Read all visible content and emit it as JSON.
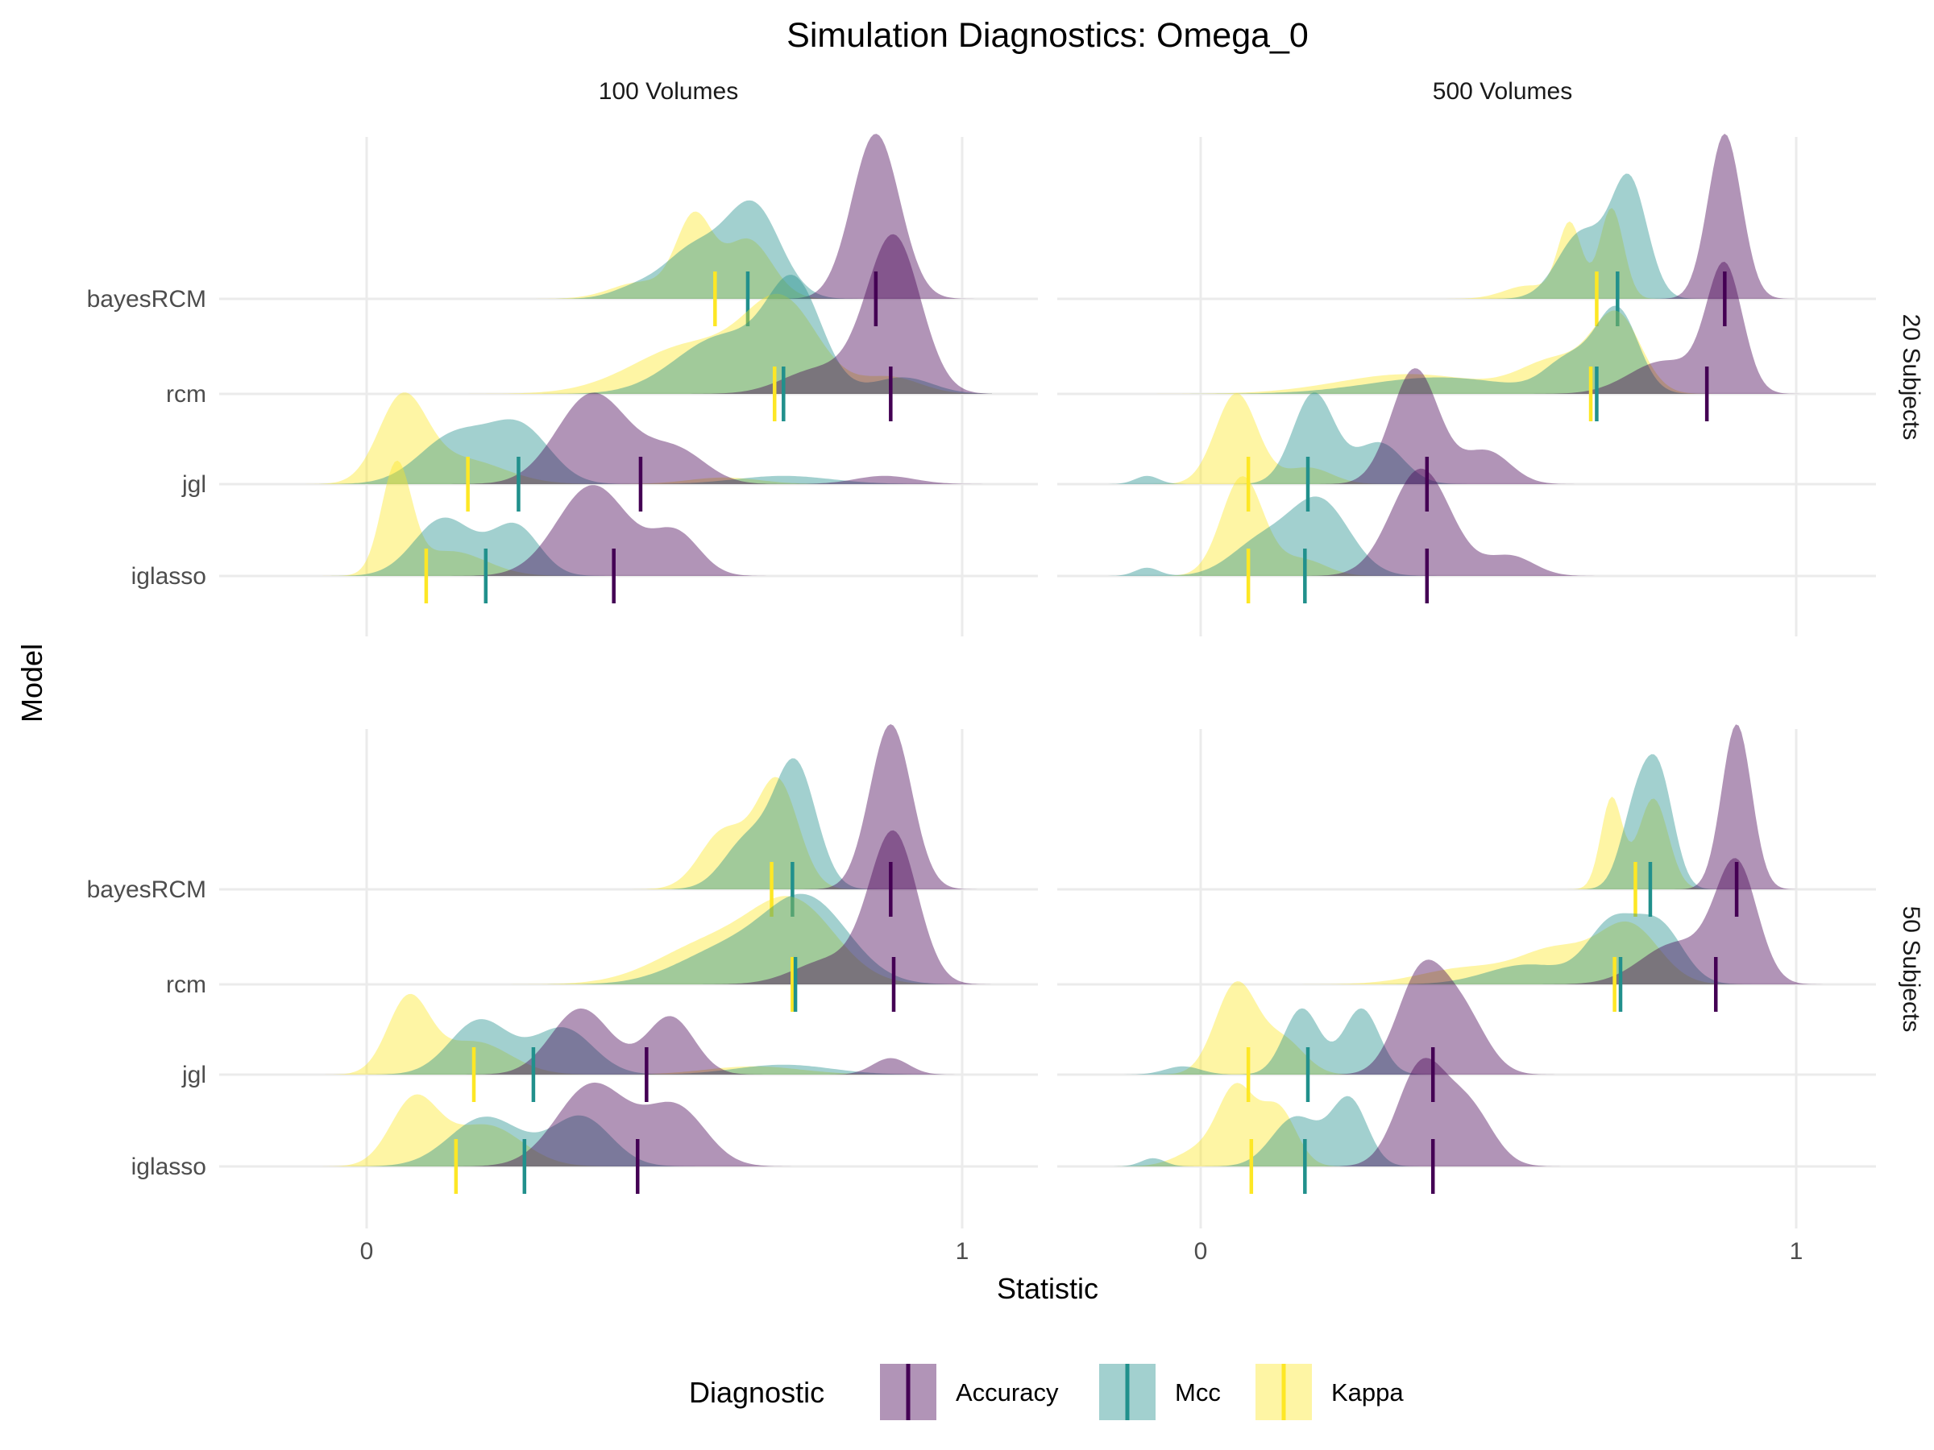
{
  "title": "Simulation Diagnostics: Omega_0",
  "xlabel": "Statistic",
  "ylabel": "Model",
  "legend": {
    "title": "Diagnostic",
    "entries": [
      "Accuracy",
      "Mcc",
      "Kappa"
    ],
    "colors": {
      "Accuracy": "#440154",
      "Mcc": "#21908C",
      "Kappa": "#FDE725"
    },
    "placement": "bottom"
  },
  "chart_data": {
    "type": "ridgeline",
    "column_facets": [
      "100 Volumes",
      "500 Volumes"
    ],
    "row_facets": [
      "20 Subjects",
      "50 Subjects"
    ],
    "models": [
      "bayesRCM",
      "rcm",
      "jgl",
      "iglasso"
    ],
    "xlim": [
      -0.23,
      1.1
    ],
    "x_ticks": [
      0,
      1
    ],
    "x_tick_labels": [
      "0",
      "1"
    ],
    "grid": true,
    "panels": {
      "20 Subjects|100 Volumes": {
        "bayesRCM": {
          "Accuracy": {
            "median": 0.855,
            "peaks": [
              [
                0.855,
                0.04,
                1.0
              ]
            ]
          },
          "Mcc": {
            "median": 0.64,
            "peaks": [
              [
                0.65,
                0.045,
                0.55
              ],
              [
                0.55,
                0.05,
                0.3
              ],
              [
                0.45,
                0.04,
                0.06
              ]
            ]
          },
          "Kappa": {
            "median": 0.585,
            "peaks": [
              [
                0.55,
                0.03,
                0.48
              ],
              [
                0.64,
                0.04,
                0.36
              ],
              [
                0.46,
                0.05,
                0.1
              ]
            ]
          }
        },
        "rcm": {
          "Accuracy": {
            "median": 0.88,
            "peaks": [
              [
                0.885,
                0.045,
                0.95
              ],
              [
                0.76,
                0.06,
                0.15
              ]
            ]
          },
          "Mcc": {
            "median": 0.7,
            "peaks": [
              [
                0.72,
                0.045,
                0.6
              ],
              [
                0.6,
                0.08,
                0.35
              ],
              [
                0.9,
                0.05,
                0.1
              ]
            ]
          },
          "Kappa": {
            "median": 0.685,
            "peaks": [
              [
                0.7,
                0.06,
                0.5
              ],
              [
                0.55,
                0.1,
                0.3
              ],
              [
                0.88,
                0.05,
                0.1
              ]
            ]
          }
        },
        "jgl": {
          "Accuracy": {
            "median": 0.46,
            "peaks": [
              [
                0.38,
                0.06,
                0.55
              ],
              [
                0.52,
                0.05,
                0.2
              ],
              [
                0.87,
                0.05,
                0.05
              ]
            ]
          },
          "Mcc": {
            "median": 0.255,
            "peaks": [
              [
                0.15,
                0.06,
                0.3
              ],
              [
                0.26,
                0.05,
                0.32
              ],
              [
                0.7,
                0.08,
                0.05
              ]
            ]
          },
          "Kappa": {
            "median": 0.17,
            "peaks": [
              [
                0.06,
                0.04,
                0.5
              ],
              [
                0.16,
                0.07,
                0.15
              ],
              [
                0.6,
                0.06,
                0.04
              ]
            ]
          }
        },
        "iglasso": {
          "Accuracy": {
            "median": 0.415,
            "peaks": [
              [
                0.38,
                0.06,
                0.55
              ],
              [
                0.52,
                0.04,
                0.25
              ]
            ]
          },
          "Mcc": {
            "median": 0.2,
            "peaks": [
              [
                0.13,
                0.05,
                0.35
              ],
              [
                0.25,
                0.04,
                0.3
              ]
            ]
          },
          "Kappa": {
            "median": 0.1,
            "peaks": [
              [
                0.05,
                0.025,
                0.65
              ],
              [
                0.14,
                0.06,
                0.15
              ]
            ]
          }
        }
      },
      "20 Subjects|500 Volumes": {
        "bayesRCM": {
          "Accuracy": {
            "median": 0.88,
            "peaks": [
              [
                0.88,
                0.028,
                1.0
              ]
            ]
          },
          "Mcc": {
            "median": 0.7,
            "peaks": [
              [
                0.72,
                0.03,
                0.7
              ],
              [
                0.64,
                0.04,
                0.4
              ]
            ]
          },
          "Kappa": {
            "median": 0.665,
            "peaks": [
              [
                0.69,
                0.02,
                0.55
              ],
              [
                0.62,
                0.02,
                0.45
              ],
              [
                0.55,
                0.04,
                0.08
              ]
            ]
          }
        },
        "rcm": {
          "Accuracy": {
            "median": 0.85,
            "peaks": [
              [
                0.88,
                0.03,
                0.75
              ],
              [
                0.78,
                0.06,
                0.2
              ]
            ]
          },
          "Mcc": {
            "median": 0.665,
            "peaks": [
              [
                0.7,
                0.035,
                0.5
              ],
              [
                0.62,
                0.04,
                0.2
              ],
              [
                0.4,
                0.12,
                0.1
              ]
            ]
          },
          "Kappa": {
            "median": 0.655,
            "peaks": [
              [
                0.7,
                0.04,
                0.45
              ],
              [
                0.6,
                0.06,
                0.2
              ],
              [
                0.35,
                0.12,
                0.12
              ]
            ]
          }
        },
        "jgl": {
          "Accuracy": {
            "median": 0.38,
            "peaks": [
              [
                0.36,
                0.04,
                0.7
              ],
              [
                0.48,
                0.04,
                0.2
              ]
            ]
          },
          "Mcc": {
            "median": 0.18,
            "peaks": [
              [
                0.19,
                0.035,
                0.55
              ],
              [
                0.3,
                0.04,
                0.25
              ],
              [
                -0.09,
                0.02,
                0.05
              ]
            ]
          },
          "Kappa": {
            "median": 0.08,
            "peaks": [
              [
                0.06,
                0.035,
                0.55
              ],
              [
                0.18,
                0.04,
                0.1
              ]
            ]
          }
        },
        "iglasso": {
          "Accuracy": {
            "median": 0.38,
            "peaks": [
              [
                0.37,
                0.05,
                0.65
              ],
              [
                0.52,
                0.04,
                0.12
              ]
            ]
          },
          "Mcc": {
            "median": 0.175,
            "peaks": [
              [
                0.2,
                0.05,
                0.45
              ],
              [
                0.1,
                0.05,
                0.2
              ],
              [
                -0.09,
                0.02,
                0.05
              ]
            ]
          },
          "Kappa": {
            "median": 0.08,
            "peaks": [
              [
                0.07,
                0.035,
                0.6
              ],
              [
                0.17,
                0.04,
                0.1
              ]
            ]
          }
        }
      },
      "50 Subjects|100 Volumes": {
        "bayesRCM": {
          "Accuracy": {
            "median": 0.88,
            "peaks": [
              [
                0.88,
                0.035,
                1.0
              ]
            ]
          },
          "Mcc": {
            "median": 0.715,
            "peaks": [
              [
                0.72,
                0.035,
                0.75
              ],
              [
                0.64,
                0.04,
                0.3
              ]
            ]
          },
          "Kappa": {
            "median": 0.68,
            "peaks": [
              [
                0.69,
                0.035,
                0.65
              ],
              [
                0.6,
                0.04,
                0.35
              ]
            ]
          }
        },
        "rcm": {
          "Accuracy": {
            "median": 0.885,
            "peaks": [
              [
                0.885,
                0.04,
                0.9
              ],
              [
                0.78,
                0.06,
                0.15
              ]
            ]
          },
          "Mcc": {
            "median": 0.72,
            "peaks": [
              [
                0.74,
                0.07,
                0.5
              ],
              [
                0.6,
                0.08,
                0.2
              ]
            ]
          },
          "Kappa": {
            "median": 0.715,
            "peaks": [
              [
                0.72,
                0.07,
                0.45
              ],
              [
                0.58,
                0.09,
                0.25
              ]
            ]
          }
        },
        "jgl": {
          "Accuracy": {
            "median": 0.47,
            "peaks": [
              [
                0.36,
                0.05,
                0.4
              ],
              [
                0.51,
                0.04,
                0.35
              ],
              [
                0.88,
                0.03,
                0.1
              ]
            ]
          },
          "Mcc": {
            "median": 0.28,
            "peaks": [
              [
                0.19,
                0.05,
                0.33
              ],
              [
                0.33,
                0.05,
                0.28
              ],
              [
                0.7,
                0.08,
                0.06
              ]
            ]
          },
          "Kappa": {
            "median": 0.18,
            "peaks": [
              [
                0.07,
                0.035,
                0.45
              ],
              [
                0.18,
                0.06,
                0.2
              ],
              [
                0.65,
                0.08,
                0.05
              ]
            ]
          }
        },
        "iglasso": {
          "Accuracy": {
            "median": 0.455,
            "peaks": [
              [
                0.38,
                0.06,
                0.5
              ],
              [
                0.52,
                0.05,
                0.35
              ]
            ]
          },
          "Mcc": {
            "median": 0.265,
            "peaks": [
              [
                0.2,
                0.06,
                0.3
              ],
              [
                0.36,
                0.05,
                0.3
              ]
            ]
          },
          "Kappa": {
            "median": 0.15,
            "peaks": [
              [
                0.08,
                0.04,
                0.4
              ],
              [
                0.2,
                0.06,
                0.25
              ]
            ]
          }
        }
      },
      "50 Subjects|500 Volumes": {
        "bayesRCM": {
          "Accuracy": {
            "median": 0.9,
            "peaks": [
              [
                0.9,
                0.025,
                1.0
              ]
            ]
          },
          "Mcc": {
            "median": 0.755,
            "peaks": [
              [
                0.77,
                0.025,
                0.65
              ],
              [
                0.73,
                0.025,
                0.45
              ]
            ]
          },
          "Kappa": {
            "median": 0.73,
            "peaks": [
              [
                0.69,
                0.018,
                0.55
              ],
              [
                0.76,
                0.025,
                0.55
              ]
            ]
          }
        },
        "rcm": {
          "Accuracy": {
            "median": 0.865,
            "peaks": [
              [
                0.9,
                0.035,
                0.7
              ],
              [
                0.8,
                0.06,
                0.25
              ]
            ]
          },
          "Mcc": {
            "median": 0.705,
            "peaks": [
              [
                0.69,
                0.04,
                0.35
              ],
              [
                0.77,
                0.04,
                0.35
              ],
              [
                0.55,
                0.07,
                0.12
              ]
            ]
          },
          "Kappa": {
            "median": 0.695,
            "peaks": [
              [
                0.72,
                0.05,
                0.35
              ],
              [
                0.6,
                0.06,
                0.2
              ],
              [
                0.45,
                0.08,
                0.1
              ]
            ]
          }
        },
        "jgl": {
          "Accuracy": {
            "median": 0.39,
            "peaks": [
              [
                0.37,
                0.04,
                0.6
              ],
              [
                0.44,
                0.04,
                0.35
              ]
            ]
          },
          "Mcc": {
            "median": 0.18,
            "peaks": [
              [
                0.17,
                0.03,
                0.4
              ],
              [
                0.27,
                0.03,
                0.4
              ],
              [
                -0.03,
                0.03,
                0.05
              ]
            ]
          },
          "Kappa": {
            "median": 0.08,
            "peaks": [
              [
                0.06,
                0.035,
                0.55
              ],
              [
                0.14,
                0.035,
                0.2
              ]
            ]
          }
        },
        "iglasso": {
          "Accuracy": {
            "median": 0.39,
            "peaks": [
              [
                0.37,
                0.04,
                0.6
              ],
              [
                0.45,
                0.04,
                0.35
              ]
            ]
          },
          "Mcc": {
            "median": 0.175,
            "peaks": [
              [
                0.25,
                0.03,
                0.4
              ],
              [
                0.16,
                0.04,
                0.3
              ],
              [
                -0.08,
                0.02,
                0.05
              ]
            ]
          },
          "Kappa": {
            "median": 0.085,
            "peaks": [
              [
                0.06,
                0.03,
                0.45
              ],
              [
                0.13,
                0.03,
                0.35
              ],
              [
                0.0,
                0.04,
                0.1
              ]
            ]
          }
        }
      }
    }
  }
}
